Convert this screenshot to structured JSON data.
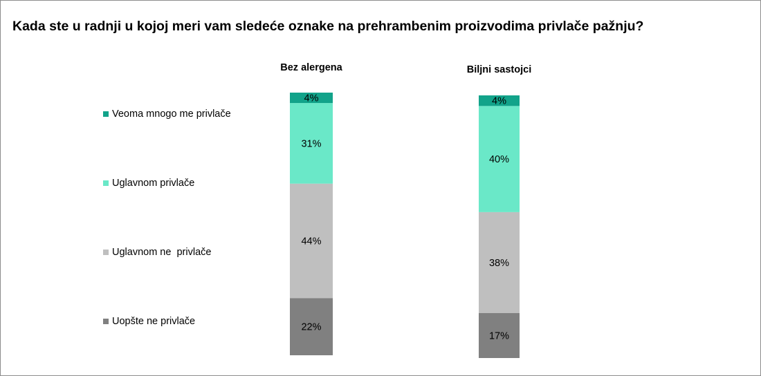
{
  "chart_data": {
    "type": "bar",
    "stacked": true,
    "orientation": "vertical",
    "title": "Kada ste u radnji u kojoj meri vam sledeće oznake na prehrambenim proizvodima privlače pažnju?",
    "categories": [
      "Bez alergena",
      "Biljni sastojci"
    ],
    "series": [
      {
        "name": "Uopšte ne privlače",
        "color": "#808080",
        "values": [
          22,
          17
        ],
        "labels": [
          "22%",
          "17%"
        ]
      },
      {
        "name": "Uglavnom ne  privlače",
        "color": "#bfbfbf",
        "values": [
          44,
          38
        ],
        "labels": [
          "44%",
          "38%"
        ]
      },
      {
        "name": "Uglavnom privlače",
        "color": "#6ae8c8",
        "values": [
          31,
          40
        ],
        "labels": [
          "31%",
          "40%"
        ]
      },
      {
        "name": "Veoma mnogo me privlače",
        "color": "#12a38a",
        "values": [
          4,
          4
        ],
        "labels": [
          "4%",
          "4%"
        ]
      }
    ],
    "legend": {
      "position": "left",
      "order": [
        "Veoma mnogo me privlače",
        "Uglavnom privlače",
        "Uglavnom ne  privlače",
        "Uopšte ne privlače"
      ]
    },
    "unit": "%",
    "grid": false
  }
}
